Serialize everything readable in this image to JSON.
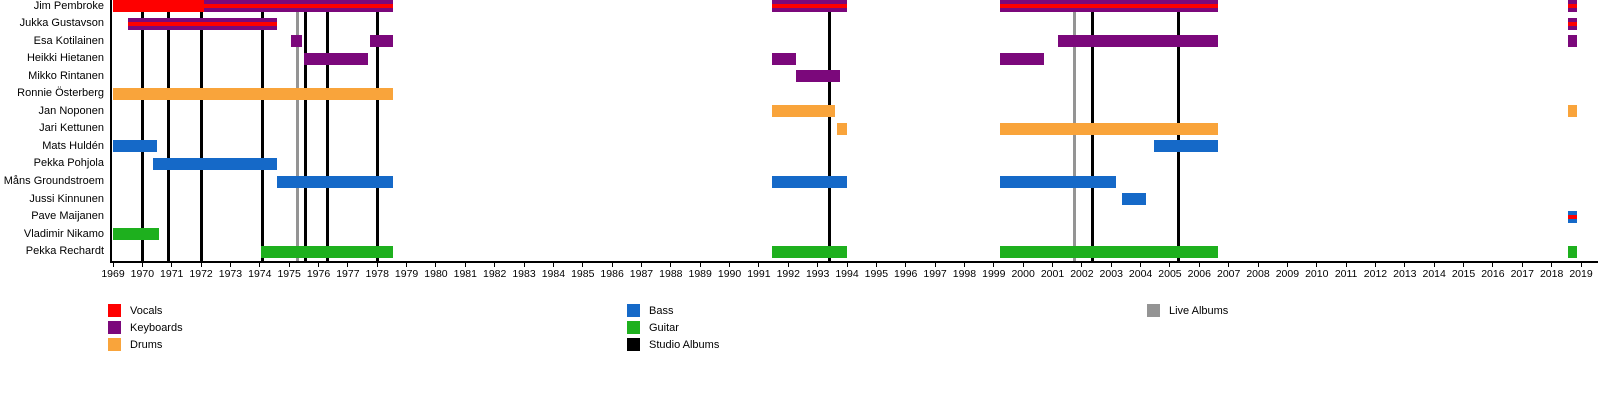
{
  "chart_data": {
    "type": "bar",
    "subtype": "band-membership-gantt-timeline",
    "title": "",
    "x_axis": {
      "min": 1969,
      "max": 2019,
      "tick_interval": 1,
      "ticks": [
        1969,
        1970,
        1971,
        1972,
        1973,
        1974,
        1975,
        1976,
        1977,
        1978,
        1979,
        1980,
        1981,
        1982,
        1983,
        1984,
        1985,
        1986,
        1987,
        1988,
        1989,
        1990,
        1991,
        1992,
        1993,
        1994,
        1995,
        1996,
        1997,
        1998,
        1999,
        2000,
        2001,
        2002,
        2003,
        2004,
        2005,
        2006,
        2007,
        2008,
        2009,
        2010,
        2011,
        2012,
        2013,
        2014,
        2015,
        2016,
        2017,
        2018,
        2019
      ]
    },
    "colors": {
      "vocals": "#fe0000",
      "keyboards": "#7b087b",
      "drums": "#f9a43b",
      "bass": "#1569c8",
      "guitar": "#1eb01e",
      "studio_album": "#000000",
      "live_album": "#949494"
    },
    "legend_columns": [
      [
        {
          "label": "Vocals",
          "color": "vocals"
        },
        {
          "label": "Keyboards",
          "color": "keyboards"
        },
        {
          "label": "Drums",
          "color": "drums"
        }
      ],
      [
        {
          "label": "Bass",
          "color": "bass"
        },
        {
          "label": "Guitar",
          "color": "guitar"
        },
        {
          "label": "Studio Albums",
          "color": "studio_album"
        }
      ],
      [
        {
          "label": "Live Albums",
          "color": "live_album"
        }
      ]
    ],
    "members": [
      {
        "name": "Jim Pembroke",
        "segments": [
          {
            "start": 1969.0,
            "end": 1972.1,
            "roles": [
              "vocals"
            ]
          },
          {
            "start": 1972.1,
            "end": 1978.55,
            "roles": [
              "keyboards",
              "vocals"
            ]
          },
          {
            "start": 1991.45,
            "end": 1994.0,
            "roles": [
              "keyboards",
              "vocals"
            ]
          },
          {
            "start": 1999.2,
            "end": 2006.65,
            "roles": [
              "keyboards",
              "vocals"
            ]
          },
          {
            "start": 2018.55,
            "end": 2018.85,
            "roles": [
              "keyboards",
              "vocals"
            ]
          }
        ]
      },
      {
        "name": "Jukka Gustavson",
        "segments": [
          {
            "start": 1969.5,
            "end": 1974.6,
            "roles": [
              "keyboards",
              "vocals"
            ]
          },
          {
            "start": 2018.55,
            "end": 2018.85,
            "roles": [
              "keyboards",
              "vocals"
            ]
          }
        ]
      },
      {
        "name": "Esa Kotilainen",
        "segments": [
          {
            "start": 1975.05,
            "end": 1975.45,
            "roles": [
              "keyboards"
            ]
          },
          {
            "start": 1977.75,
            "end": 1978.55,
            "roles": [
              "keyboards"
            ]
          },
          {
            "start": 2001.2,
            "end": 2006.65,
            "roles": [
              "keyboards"
            ]
          },
          {
            "start": 2018.55,
            "end": 2018.85,
            "roles": [
              "keyboards"
            ]
          }
        ]
      },
      {
        "name": "Heikki Hietanen",
        "segments": [
          {
            "start": 1975.5,
            "end": 1977.7,
            "roles": [
              "keyboards"
            ]
          },
          {
            "start": 1991.45,
            "end": 1992.25,
            "roles": [
              "keyboards"
            ]
          },
          {
            "start": 1999.2,
            "end": 2000.7,
            "roles": [
              "keyboards"
            ]
          }
        ]
      },
      {
        "name": "Mikko Rintanen",
        "segments": [
          {
            "start": 1992.25,
            "end": 1993.75,
            "roles": [
              "keyboards"
            ]
          }
        ]
      },
      {
        "name": "Ronnie Österberg",
        "segments": [
          {
            "start": 1969.0,
            "end": 1978.55,
            "roles": [
              "drums"
            ]
          }
        ]
      },
      {
        "name": "Jan Noponen",
        "segments": [
          {
            "start": 1991.45,
            "end": 1993.6,
            "roles": [
              "drums"
            ]
          },
          {
            "start": 2018.55,
            "end": 2018.85,
            "roles": [
              "drums"
            ]
          }
        ]
      },
      {
        "name": "Jari Kettunen",
        "segments": [
          {
            "start": 1993.65,
            "end": 1994.0,
            "roles": [
              "drums"
            ]
          },
          {
            "start": 1999.2,
            "end": 2006.65,
            "roles": [
              "drums"
            ]
          }
        ]
      },
      {
        "name": "Mats Huldén",
        "segments": [
          {
            "start": 1969.0,
            "end": 1970.5,
            "roles": [
              "bass"
            ]
          },
          {
            "start": 2004.45,
            "end": 2006.65,
            "roles": [
              "bass"
            ]
          }
        ]
      },
      {
        "name": "Pekka Pohjola",
        "segments": [
          {
            "start": 1970.35,
            "end": 1974.6,
            "roles": [
              "bass"
            ]
          }
        ]
      },
      {
        "name": "Måns Groundstroem",
        "segments": [
          {
            "start": 1974.6,
            "end": 1978.55,
            "roles": [
              "bass"
            ]
          },
          {
            "start": 1991.45,
            "end": 1994.0,
            "roles": [
              "bass"
            ]
          },
          {
            "start": 1999.2,
            "end": 2003.15,
            "roles": [
              "bass"
            ]
          }
        ]
      },
      {
        "name": "Jussi Kinnunen",
        "segments": [
          {
            "start": 2003.35,
            "end": 2004.2,
            "roles": [
              "bass"
            ]
          }
        ]
      },
      {
        "name": "Pave Maijanen",
        "segments": [
          {
            "start": 2018.55,
            "end": 2018.85,
            "roles": [
              "bass",
              "vocals"
            ]
          }
        ]
      },
      {
        "name": "Vladimir Nikamo",
        "segments": [
          {
            "start": 1969.0,
            "end": 1970.55,
            "roles": [
              "guitar"
            ]
          }
        ]
      },
      {
        "name": "Pekka Rechardt",
        "segments": [
          {
            "start": 1974.05,
            "end": 1978.55,
            "roles": [
              "guitar"
            ]
          },
          {
            "start": 1991.45,
            "end": 1994.0,
            "roles": [
              "guitar"
            ]
          },
          {
            "start": 1999.2,
            "end": 2006.65,
            "roles": [
              "guitar"
            ]
          },
          {
            "start": 2018.55,
            "end": 2018.85,
            "roles": [
              "guitar"
            ]
          }
        ]
      }
    ],
    "studio_album_lines": [
      1970.0,
      1970.9,
      1972.0,
      1974.1,
      1975.55,
      1976.3,
      1978.0,
      1993.4,
      2002.35,
      2005.3
    ],
    "live_album_lines": [
      1975.3,
      2001.75
    ]
  }
}
